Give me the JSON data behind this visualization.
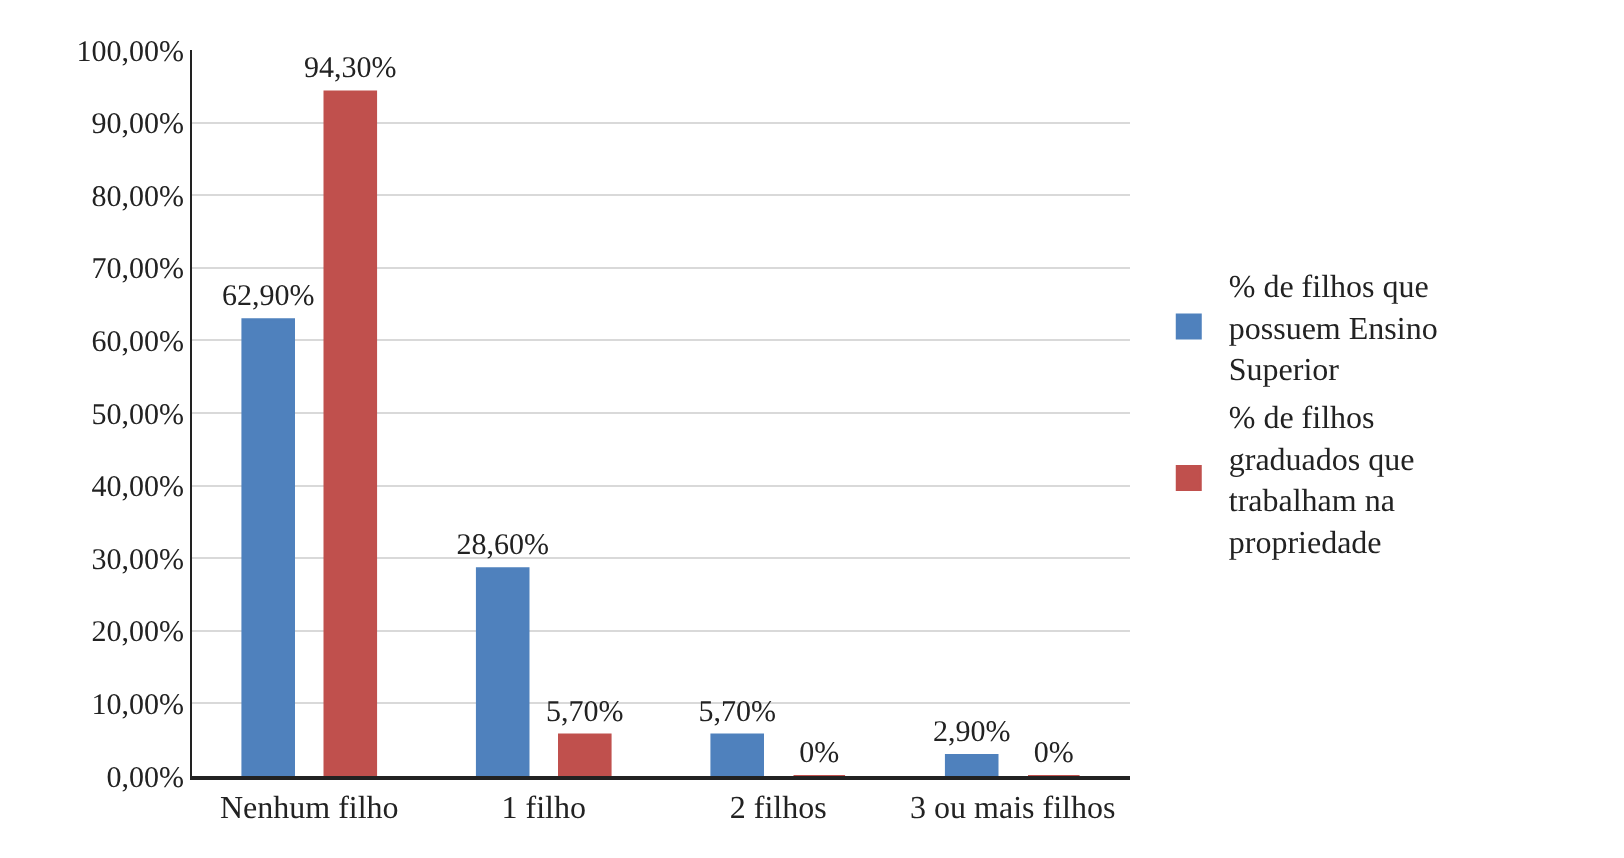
{
  "chart_data": {
    "type": "bar",
    "categories": [
      "Nenhum filho",
      "1 filho",
      "2 filhos",
      "3 ou mais filhos"
    ],
    "series": [
      {
        "name": "% de filhos que possuem Ensino Superior",
        "color": "#4f81bd",
        "values": [
          62.9,
          28.6,
          5.7,
          2.9
        ],
        "value_labels": [
          "62,90%",
          "28,60%",
          "5,70%",
          "2,90%"
        ]
      },
      {
        "name": "% de filhos graduados que trabalham na propriedade",
        "color": "#c0504d",
        "values": [
          94.3,
          5.7,
          0,
          0
        ],
        "value_labels": [
          "94,30%",
          "5,70%",
          "0%",
          "0%"
        ]
      }
    ],
    "ylim": [
      0,
      100
    ],
    "yticks": [
      {
        "value": 0,
        "label": "0,00%"
      },
      {
        "value": 10,
        "label": "10,00%"
      },
      {
        "value": 20,
        "label": "20,00%"
      },
      {
        "value": 30,
        "label": "30,00%"
      },
      {
        "value": 40,
        "label": "40,00%"
      },
      {
        "value": 50,
        "label": "50,00%"
      },
      {
        "value": 60,
        "label": "60,00%"
      },
      {
        "value": 70,
        "label": "70,00%"
      },
      {
        "value": 80,
        "label": "80,00%"
      },
      {
        "value": 90,
        "label": "90,00%"
      },
      {
        "value": 100,
        "label": "100,00%"
      }
    ],
    "grid": "y",
    "legend": "right"
  }
}
